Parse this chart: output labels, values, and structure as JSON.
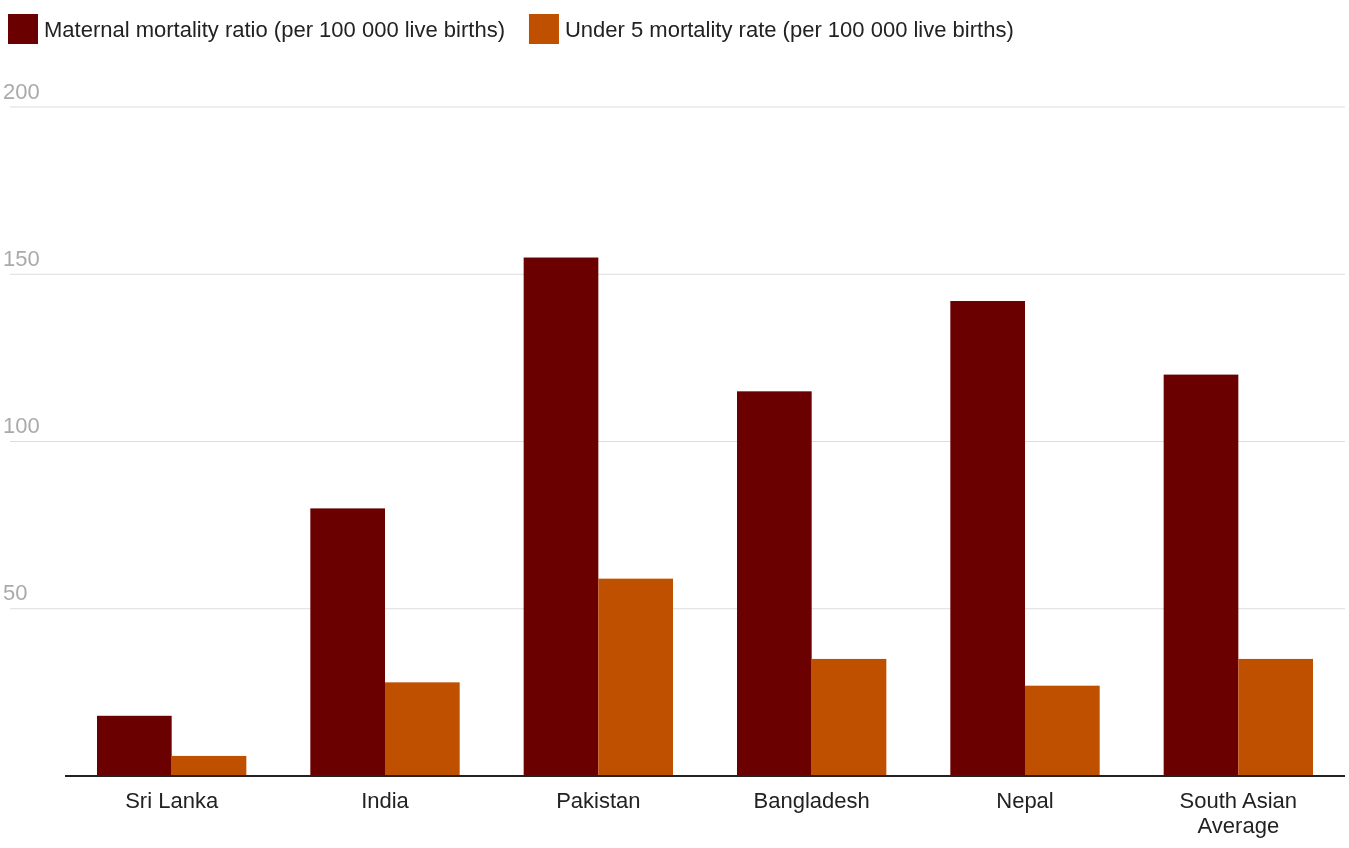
{
  "chart_data": {
    "type": "bar",
    "categories": [
      "Sri Lanka",
      "India",
      "Pakistan",
      "Bangladesh",
      "Nepal",
      "South Asian Average"
    ],
    "series": [
      {
        "name": "Maternal mortality ratio (per 100 000 live births)",
        "color": "#6b0000",
        "values": [
          18,
          80,
          155,
          115,
          142,
          120
        ]
      },
      {
        "name": "Under 5 mortality rate (per 100 000 live births)",
        "color": "#bf5000",
        "values": [
          6,
          28,
          59,
          35,
          27,
          35
        ]
      }
    ],
    "ylim": [
      0,
      200
    ],
    "yticks": [
      50,
      100,
      150,
      200
    ],
    "grid": "y",
    "legend": "top left"
  }
}
